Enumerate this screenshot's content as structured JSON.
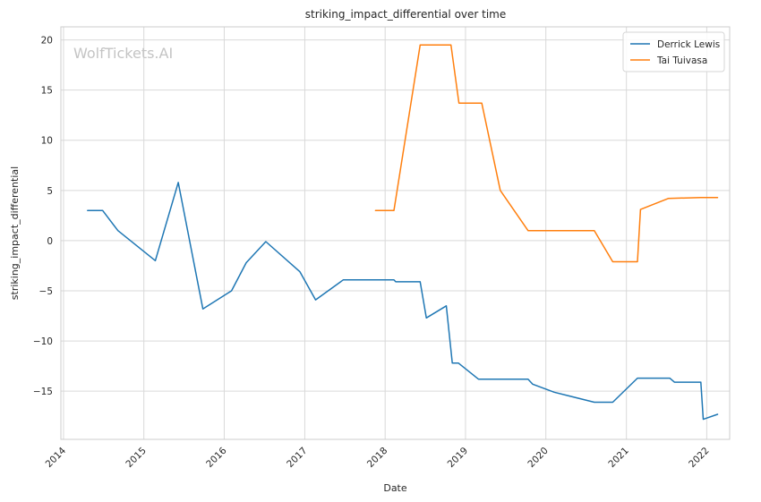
{
  "watermark": "WolfTickets.AI",
  "chart_data": {
    "type": "line",
    "title": "striking_impact_differential over time",
    "xlabel": "Date",
    "ylabel": "striking_impact_differential",
    "x_type": "date",
    "xlim": [
      "2013-12-20",
      "2022-04-15"
    ],
    "ylim": [
      -19.8,
      21.3
    ],
    "x_ticks": [
      "2014",
      "2015",
      "2016",
      "2017",
      "2018",
      "2019",
      "2020",
      "2021",
      "2022"
    ],
    "y_ticks": [
      -15,
      -10,
      -5,
      0,
      5,
      10,
      15,
      20
    ],
    "grid": true,
    "legend_position": "top-right",
    "series": [
      {
        "name": "Derrick Lewis",
        "color": "#1f77b4",
        "points": [
          [
            "2014-04-20",
            3.0
          ],
          [
            "2014-06-28",
            3.0
          ],
          [
            "2014-09-05",
            1.0
          ],
          [
            "2015-02-22",
            -2.0
          ],
          [
            "2015-06-06",
            5.8
          ],
          [
            "2015-09-26",
            -6.8
          ],
          [
            "2016-02-03",
            -5.0
          ],
          [
            "2016-04-10",
            -2.2
          ],
          [
            "2016-07-08",
            -0.1
          ],
          [
            "2016-12-10",
            -3.1
          ],
          [
            "2017-02-19",
            -5.9
          ],
          [
            "2017-06-25",
            -3.9
          ],
          [
            "2018-02-10",
            -3.9
          ],
          [
            "2018-02-18",
            -4.1
          ],
          [
            "2018-06-09",
            -4.1
          ],
          [
            "2018-07-07",
            -7.7
          ],
          [
            "2018-10-06",
            -6.5
          ],
          [
            "2018-11-02",
            -12.2
          ],
          [
            "2018-11-30",
            -12.2
          ],
          [
            "2019-03-01",
            -13.8
          ],
          [
            "2019-10-12",
            -13.8
          ],
          [
            "2019-11-02",
            -14.3
          ],
          [
            "2020-02-08",
            -15.1
          ],
          [
            "2020-08-08",
            -16.1
          ],
          [
            "2020-10-31",
            -16.1
          ],
          [
            "2021-02-20",
            -13.7
          ],
          [
            "2021-07-17",
            -13.7
          ],
          [
            "2021-08-07",
            -14.1
          ],
          [
            "2021-12-05",
            -14.1
          ],
          [
            "2021-12-16",
            -17.8
          ],
          [
            "2022-02-19",
            -17.3
          ]
        ]
      },
      {
        "name": "Tai Tuivasa",
        "color": "#ff7f0e",
        "points": [
          [
            "2017-11-18",
            3.0
          ],
          [
            "2018-02-10",
            3.0
          ],
          [
            "2018-06-09",
            19.5
          ],
          [
            "2018-10-27",
            19.5
          ],
          [
            "2018-12-02",
            13.7
          ],
          [
            "2019-03-16",
            13.7
          ],
          [
            "2019-06-08",
            5.0
          ],
          [
            "2019-10-12",
            1.0
          ],
          [
            "2020-08-08",
            1.0
          ],
          [
            "2020-10-31",
            -2.1
          ],
          [
            "2021-02-20",
            -2.1
          ],
          [
            "2021-03-06",
            3.1
          ],
          [
            "2021-07-10",
            4.2
          ],
          [
            "2021-12-05",
            4.3
          ],
          [
            "2022-02-19",
            4.3
          ]
        ]
      }
    ]
  }
}
